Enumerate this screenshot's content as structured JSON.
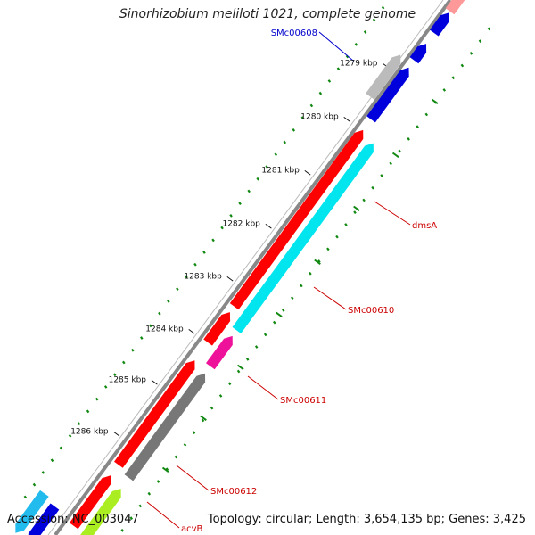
{
  "title": "Sinorhizobium meliloti 1021, complete genome",
  "footer": {
    "accession": "Accession: NC_003047",
    "summary": "Topology: circular; Length: 3,654,135 bp; Genes: 3,425"
  },
  "ticks": [
    {
      "label": "1279 kbp"
    },
    {
      "label": "1280 kbp"
    },
    {
      "label": "1281 kbp"
    },
    {
      "label": "1282 kbp"
    },
    {
      "label": "1283 kbp"
    },
    {
      "label": "1284 kbp"
    },
    {
      "label": "1285 kbp"
    },
    {
      "label": "1286 kbp"
    }
  ],
  "labels": [
    {
      "name": "SMc00608",
      "color": "#0000cc"
    },
    {
      "name": "dmsA",
      "color": "#cc0000"
    },
    {
      "name": "SMc00610",
      "color": "#cc0000"
    },
    {
      "name": "SMc00611",
      "color": "#cc0000"
    },
    {
      "name": "SMc00612",
      "color": "#cc0000"
    },
    {
      "name": "acvB",
      "color": "#cc0000"
    }
  ],
  "colors": {
    "cds_forward": "#ff0000",
    "cds_reverse": "#0000dd",
    "cog_cyan": "#00e5ee",
    "cog_gray": "#777777",
    "cog_lightgray": "#bbbbbb",
    "cog_magenta": "#ee1199",
    "cog_lime": "#aaee22",
    "cog_skyblue": "#22bbee",
    "backbone": "#888888",
    "tick_green": "#118811"
  }
}
